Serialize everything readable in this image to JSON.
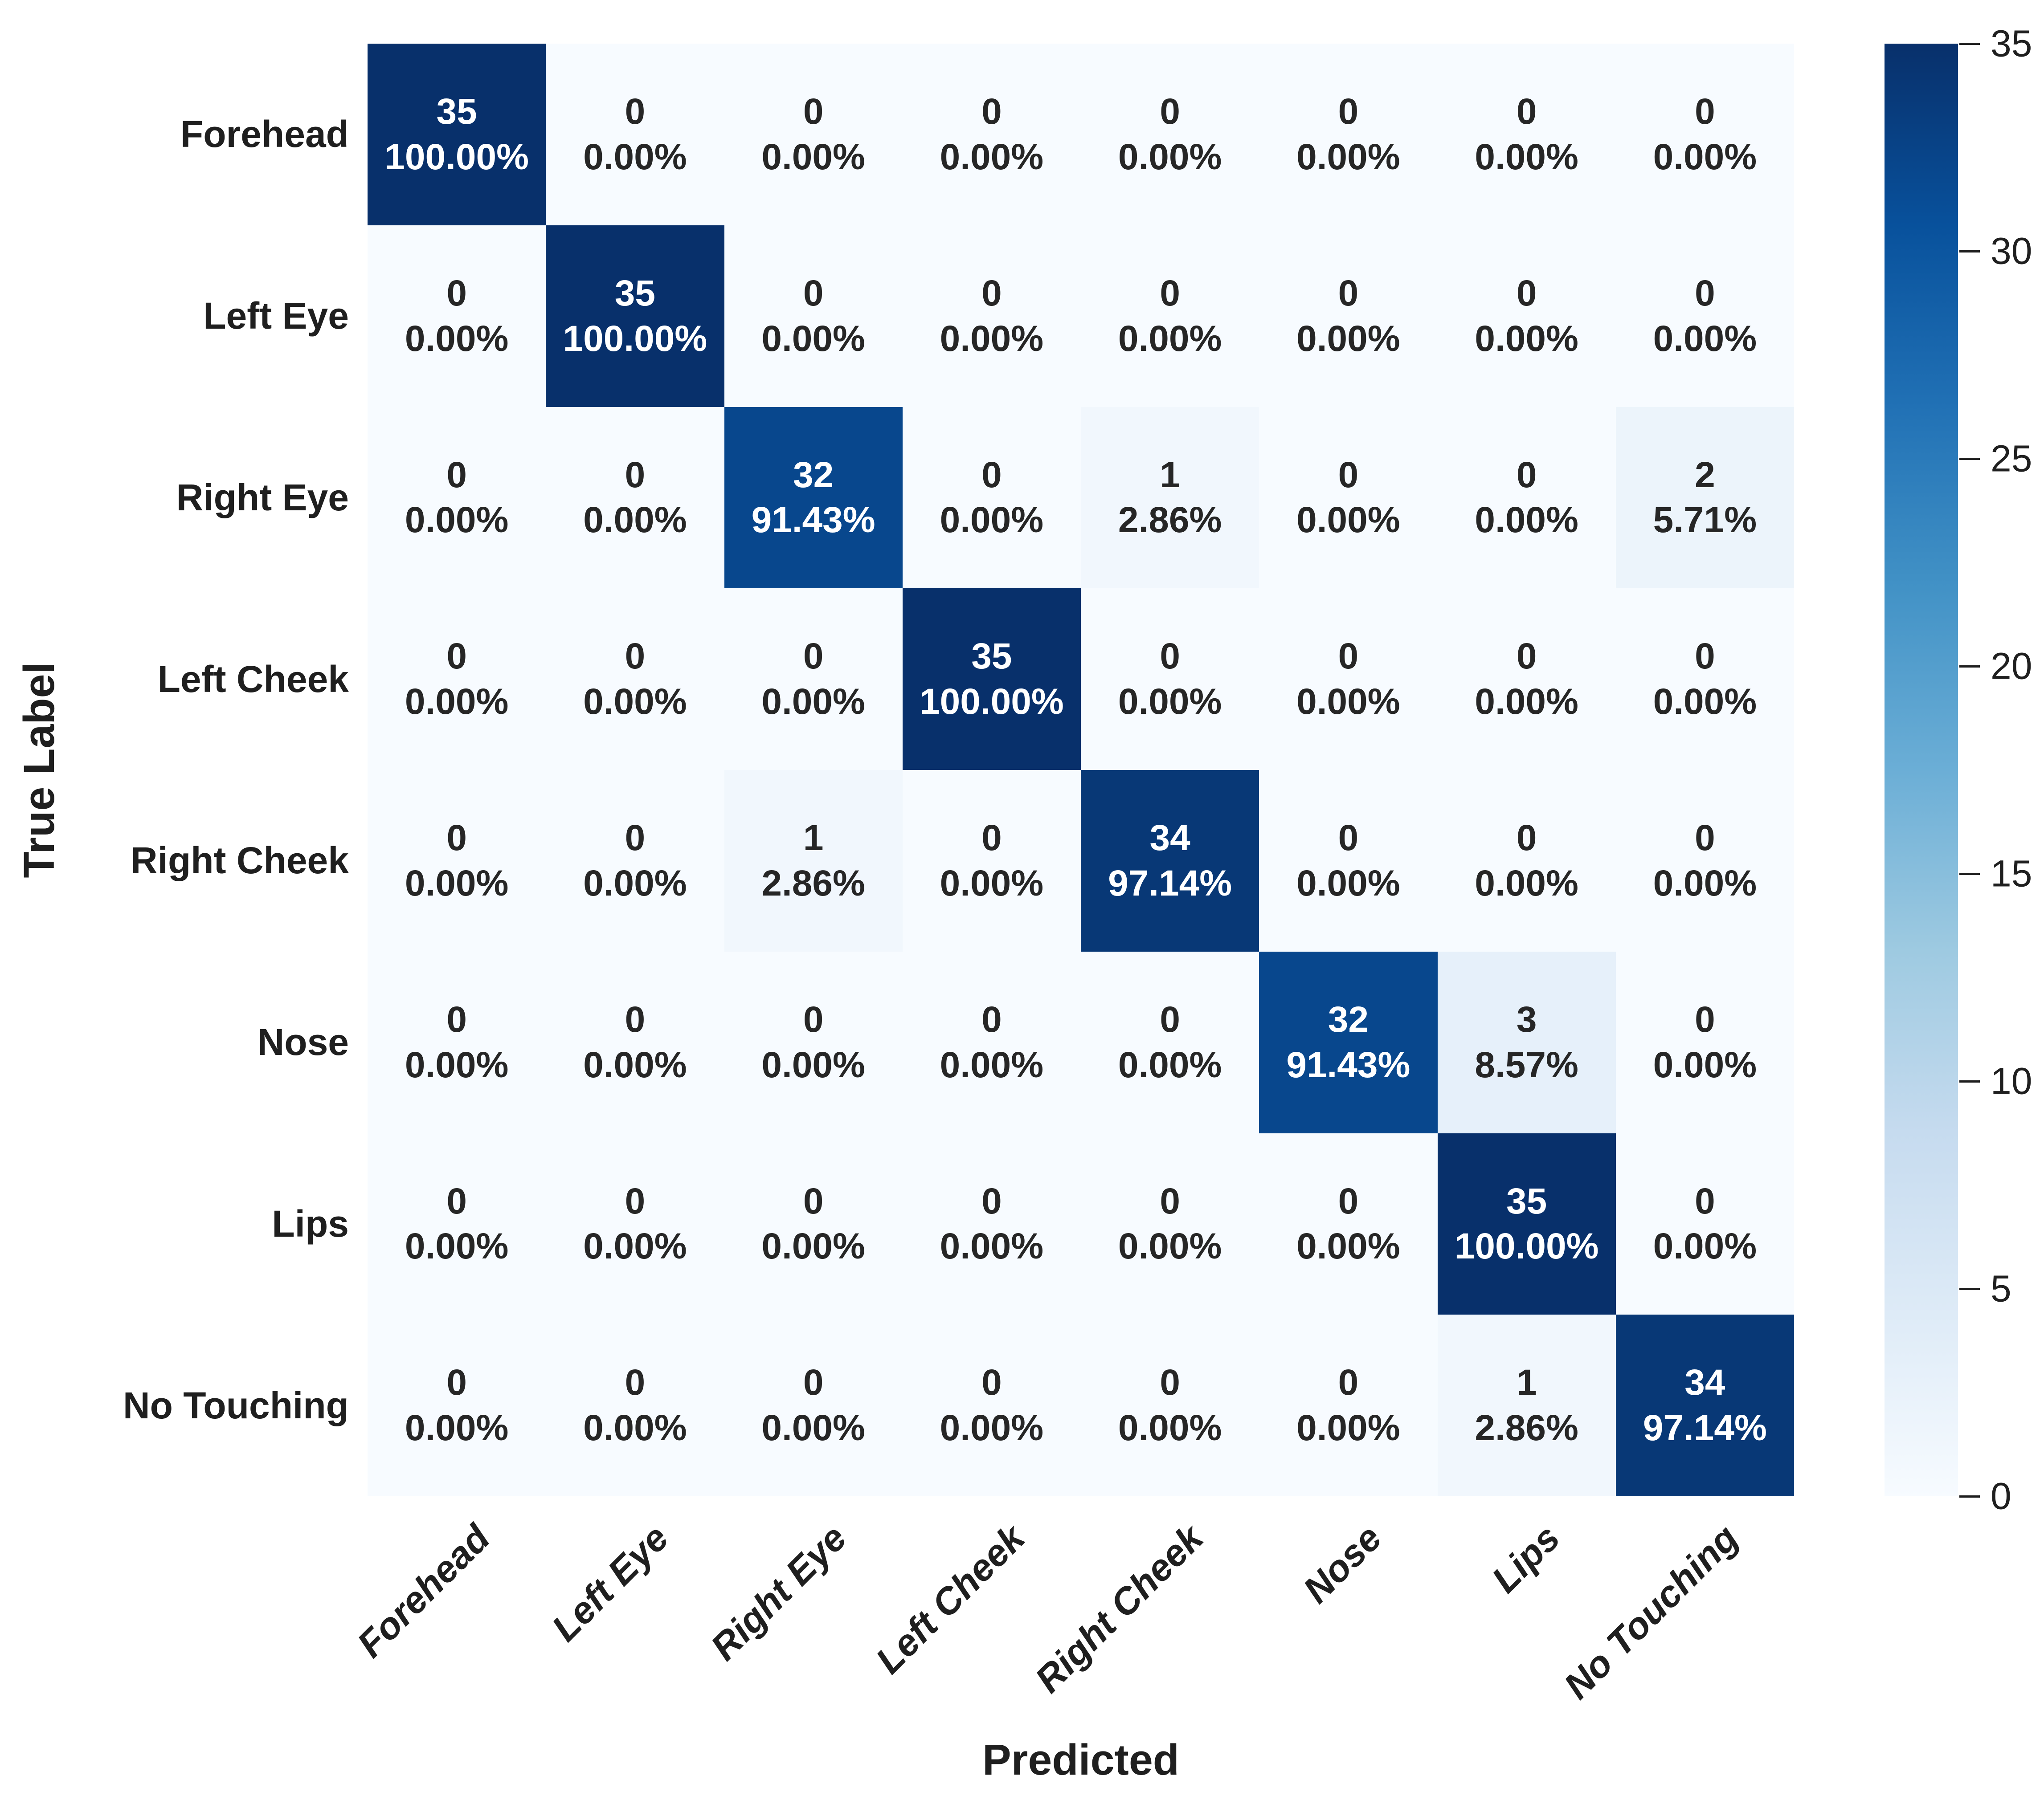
{
  "figure": {
    "background": "#ffffff",
    "annotation_text_dark": "#262626",
    "annotation_text_light": "#ffffff",
    "label_color": "#1f1f1f"
  },
  "chart_data": {
    "type": "heatmap",
    "xlabel": "Predicted",
    "ylabel": "True Label",
    "x_tick_labels": [
      "Forehead",
      "Left Eye",
      "Right Eye",
      "Left Cheek",
      "Right Cheek",
      "Nose",
      "Lips",
      "No Touching"
    ],
    "y_tick_labels": [
      "Forehead",
      "Left Eye",
      "Right Eye",
      "Left Cheek",
      "Right Cheek",
      "Nose",
      "Lips",
      "No Touching"
    ],
    "counts": [
      [
        35,
        0,
        0,
        0,
        0,
        0,
        0,
        0
      ],
      [
        0,
        35,
        0,
        0,
        0,
        0,
        0,
        0
      ],
      [
        0,
        0,
        32,
        0,
        1,
        0,
        0,
        2
      ],
      [
        0,
        0,
        0,
        35,
        0,
        0,
        0,
        0
      ],
      [
        0,
        0,
        1,
        0,
        34,
        0,
        0,
        0
      ],
      [
        0,
        0,
        0,
        0,
        0,
        32,
        3,
        0
      ],
      [
        0,
        0,
        0,
        0,
        0,
        0,
        35,
        0
      ],
      [
        0,
        0,
        0,
        0,
        0,
        0,
        1,
        34
      ]
    ],
    "row_percents": [
      [
        "100.00%",
        "0.00%",
        "0.00%",
        "0.00%",
        "0.00%",
        "0.00%",
        "0.00%",
        "0.00%"
      ],
      [
        "0.00%",
        "100.00%",
        "0.00%",
        "0.00%",
        "0.00%",
        "0.00%",
        "0.00%",
        "0.00%"
      ],
      [
        "0.00%",
        "0.00%",
        "91.43%",
        "0.00%",
        "2.86%",
        "0.00%",
        "0.00%",
        "5.71%"
      ],
      [
        "0.00%",
        "0.00%",
        "0.00%",
        "100.00%",
        "0.00%",
        "0.00%",
        "0.00%",
        "0.00%"
      ],
      [
        "0.00%",
        "0.00%",
        "2.86%",
        "0.00%",
        "97.14%",
        "0.00%",
        "0.00%",
        "0.00%"
      ],
      [
        "0.00%",
        "0.00%",
        "0.00%",
        "0.00%",
        "0.00%",
        "91.43%",
        "8.57%",
        "0.00%"
      ],
      [
        "0.00%",
        "0.00%",
        "0.00%",
        "0.00%",
        "0.00%",
        "0.00%",
        "100.00%",
        "0.00%"
      ],
      [
        "0.00%",
        "0.00%",
        "0.00%",
        "0.00%",
        "0.00%",
        "0.00%",
        "2.86%",
        "97.14%"
      ]
    ],
    "vmin": 0,
    "vmax": 35,
    "colormap": "Blues",
    "gradient_stops": [
      {
        "t": 0.0,
        "color": "#f7fbff"
      },
      {
        "t": 0.125,
        "color": "#deebf7"
      },
      {
        "t": 0.25,
        "color": "#c6dbef"
      },
      {
        "t": 0.375,
        "color": "#9ecae1"
      },
      {
        "t": 0.5,
        "color": "#6baed6"
      },
      {
        "t": 0.625,
        "color": "#4292c6"
      },
      {
        "t": 0.75,
        "color": "#2171b5"
      },
      {
        "t": 0.875,
        "color": "#08519c"
      },
      {
        "t": 1.0,
        "color": "#08306b"
      }
    ],
    "colorbar_ticks": [
      0,
      5,
      10,
      15,
      20,
      25,
      30,
      35
    ],
    "legend_position": "right",
    "grid": false
  }
}
